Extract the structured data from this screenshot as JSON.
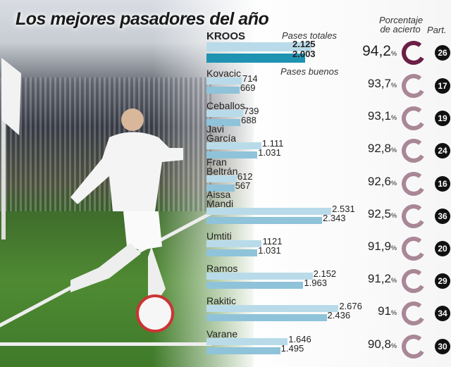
{
  "title": "Los mejores pasadores del año",
  "headers": {
    "pases_totales": "Pases totales",
    "pases_buenos": "Pases buenos",
    "porcentaje": "Porcentaje de acierto",
    "partidos": "Part."
  },
  "colors": {
    "total_bar": "#b9dbe9",
    "good_bar": "#8fc3d9",
    "kroos_good_bar": "#1f93b2",
    "ring_highlight": "#6b1f45",
    "ring": "#a98797"
  },
  "chart_data": {
    "type": "bar",
    "title": "Los mejores pasadores del año",
    "series_labels": [
      "Pases totales",
      "Pases buenos"
    ],
    "players": [
      {
        "name": "KROOS",
        "total": 2125,
        "total_label": "2.125",
        "good": 2003,
        "good_label": "2.003",
        "pct": "94,2",
        "pct_value": 94.2,
        "matches": "26"
      },
      {
        "name": "Kovacic",
        "total": 714,
        "total_label": "714",
        "good": 669,
        "good_label": "669",
        "pct": "93,7",
        "pct_value": 93.7,
        "matches": "17"
      },
      {
        "name": "Ceballos",
        "total": 739,
        "total_label": "739",
        "good": 688,
        "good_label": "688",
        "pct": "93,1",
        "pct_value": 93.1,
        "matches": "19"
      },
      {
        "name": "Javi García",
        "total": 1111,
        "total_label": "1.111",
        "good": 1031,
        "good_label": "1.031",
        "pct": "92,8",
        "pct_value": 92.8,
        "matches": "24"
      },
      {
        "name": "Fran Beltrán",
        "total": 612,
        "total_label": "612",
        "good": 567,
        "good_label": "567",
        "pct": "92,6",
        "pct_value": 92.6,
        "matches": "16"
      },
      {
        "name": "Aissa Mandi",
        "total": 2531,
        "total_label": "2.531",
        "good": 2343,
        "good_label": "2.343",
        "pct": "92,5",
        "pct_value": 92.5,
        "matches": "36"
      },
      {
        "name": "Umtiti",
        "total": 1121,
        "total_label": "1121",
        "good": 1031,
        "good_label": "1.031",
        "pct": "91,9",
        "pct_value": 91.9,
        "matches": "20"
      },
      {
        "name": "Ramos",
        "total": 2152,
        "total_label": "2.152",
        "good": 1963,
        "good_label": "1.963",
        "pct": "91,2",
        "pct_value": 91.2,
        "matches": "29"
      },
      {
        "name": "Rakitic",
        "total": 2676,
        "total_label": "2.676",
        "good": 2436,
        "good_label": "2.436",
        "pct": "91",
        "pct_value": 91,
        "matches": "34"
      },
      {
        "name": "Varane",
        "total": 1646,
        "total_label": "1.646",
        "good": 1495,
        "good_label": "1.495",
        "pct": "90,8",
        "pct_value": 90.8,
        "matches": "30"
      }
    ],
    "pct_suffix": "%"
  }
}
